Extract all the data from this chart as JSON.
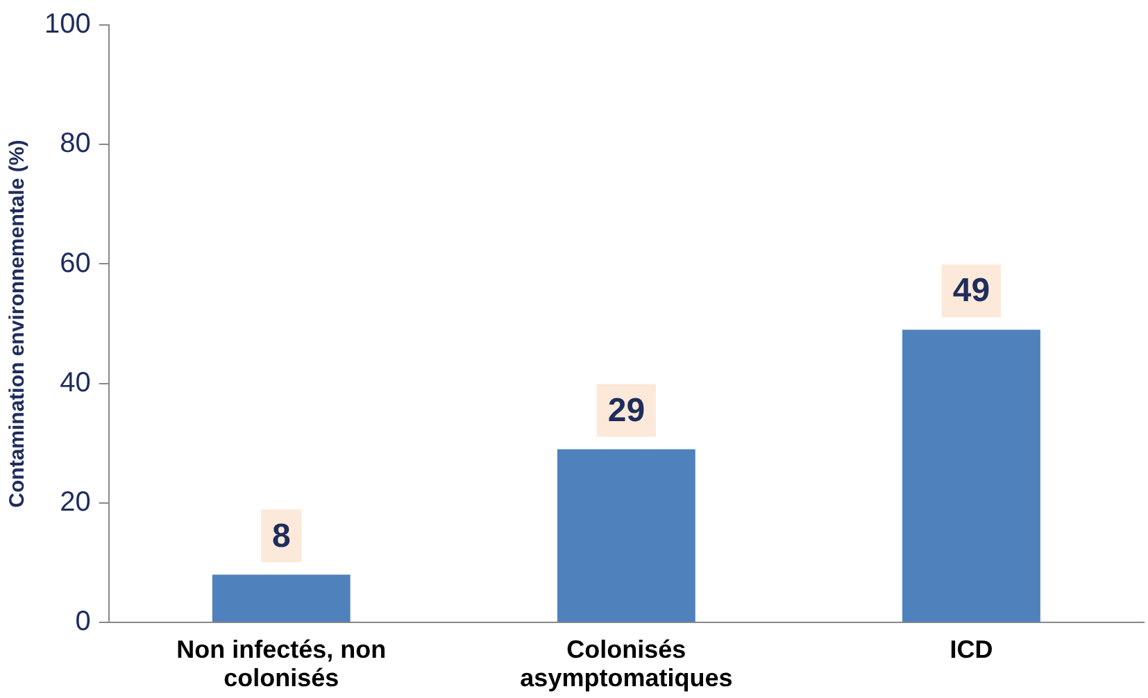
{
  "chart_data": {
    "type": "bar",
    "ylabel": "Contamination environnementale (%)",
    "categories": [
      "Non infectés, non colonisés",
      "Colonisés asymptomatiques",
      "ICD"
    ],
    "values": [
      8,
      29,
      49
    ],
    "color": "#4f81bd",
    "ylim": [
      0,
      100
    ],
    "yticks": [
      0,
      20,
      40,
      60,
      80,
      100
    ],
    "grid": false,
    "legend": false,
    "data_labels": true
  }
}
